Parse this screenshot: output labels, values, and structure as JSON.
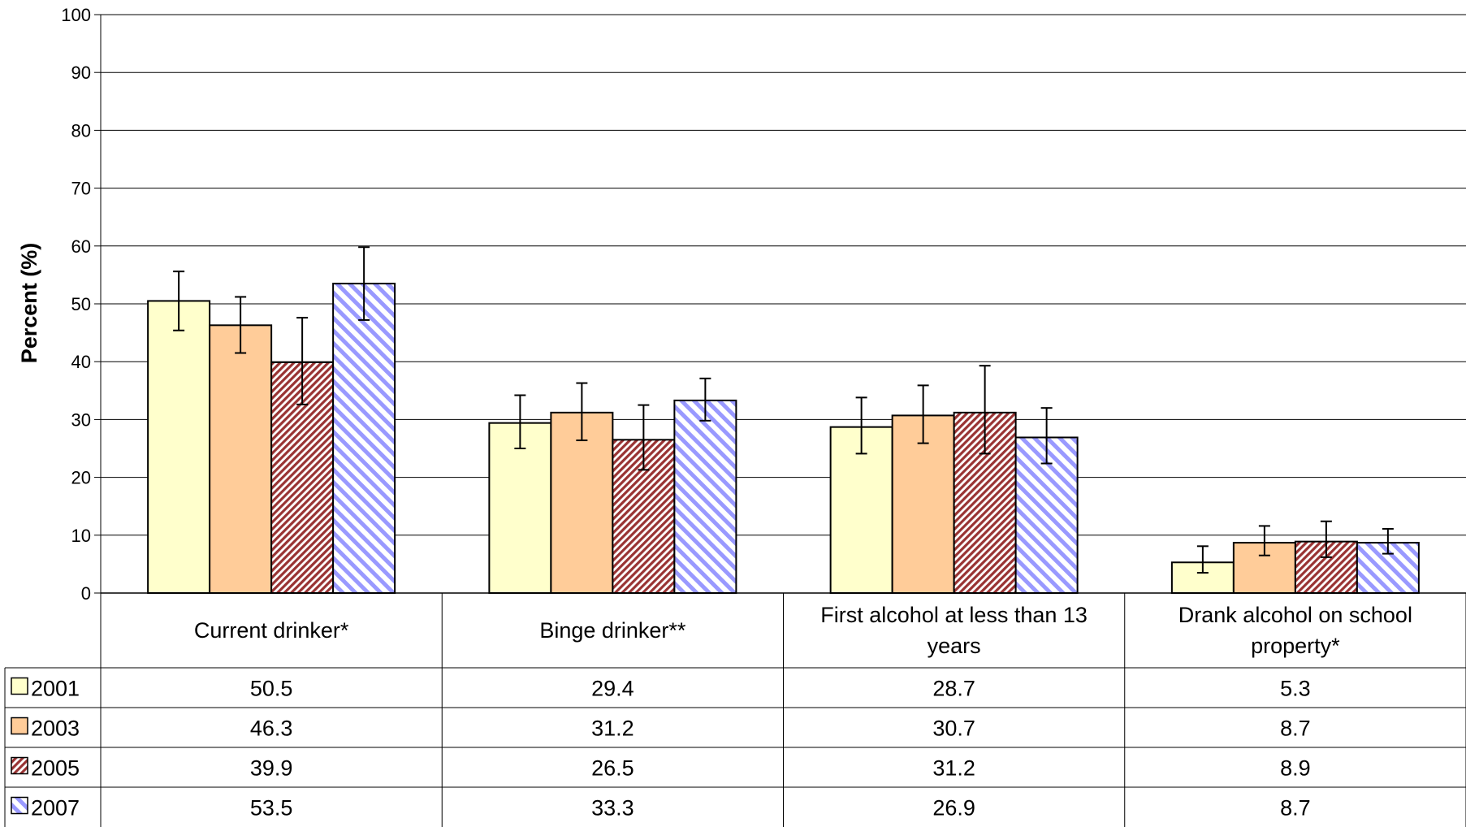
{
  "chart_data": {
    "type": "bar",
    "ylabel": "Percent (%)",
    "ylim": [
      0,
      100
    ],
    "yticks": [
      0,
      10,
      20,
      30,
      40,
      50,
      60,
      70,
      80,
      90,
      100
    ],
    "grid": true,
    "legend": "data-table",
    "categories": [
      "Current drinker*",
      "Binge drinker**",
      "First alcohol at less than 13 years",
      "Drank alcohol on school property*"
    ],
    "series": [
      {
        "name": "2001",
        "pattern": "solid",
        "color": "#FFFFCC",
        "values": [
          50.5,
          29.4,
          28.7,
          5.3
        ],
        "error_low": [
          45.4,
          25.0,
          24.1,
          3.5
        ],
        "error_high": [
          55.6,
          34.2,
          33.8,
          8.1
        ]
      },
      {
        "name": "2003",
        "pattern": "solid",
        "color": "#FFCC99",
        "values": [
          46.3,
          31.2,
          30.7,
          8.7
        ],
        "error_low": [
          41.5,
          26.4,
          25.9,
          6.5
        ],
        "error_high": [
          51.2,
          36.3,
          35.9,
          11.6
        ]
      },
      {
        "name": "2005",
        "pattern": "crosshatch",
        "color": "#993333",
        "values": [
          39.9,
          26.5,
          31.2,
          8.9
        ],
        "error_low": [
          32.6,
          21.3,
          24.1,
          6.2
        ],
        "error_high": [
          47.6,
          32.5,
          39.3,
          12.4
        ]
      },
      {
        "name": "2007",
        "pattern": "diagonal",
        "color": "#9999FF",
        "values": [
          53.5,
          33.3,
          26.9,
          8.7
        ],
        "error_low": [
          47.2,
          29.8,
          22.4,
          6.8
        ],
        "error_high": [
          59.8,
          37.1,
          32.0,
          11.1
        ]
      }
    ],
    "table": {
      "rows": [
        {
          "label": "2001",
          "cells": [
            "50.5",
            "29.4",
            "28.7",
            "5.3"
          ]
        },
        {
          "label": "2003",
          "cells": [
            "46.3",
            "31.2",
            "30.7",
            "8.7"
          ]
        },
        {
          "label": "2005",
          "cells": [
            "39.9",
            "26.5",
            "31.2",
            "8.9"
          ]
        },
        {
          "label": "2007",
          "cells": [
            "53.5",
            "33.3",
            "26.9",
            "8.7"
          ]
        }
      ]
    }
  }
}
